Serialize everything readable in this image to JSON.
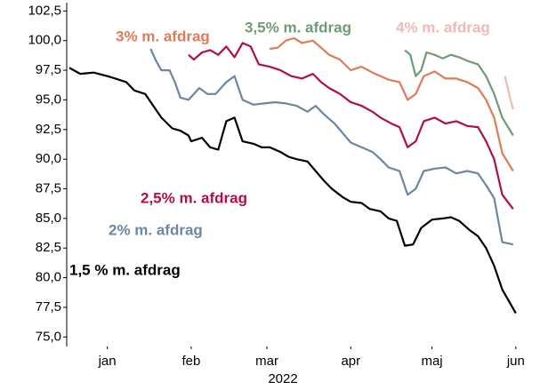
{
  "chart_data": {
    "type": "line",
    "x_label": "2022",
    "xlim": [
      -15,
      155
    ],
    "xticks": [
      {
        "value": 0,
        "label": "jan"
      },
      {
        "value": 31,
        "label": "feb"
      },
      {
        "value": 59,
        "label": "mar"
      },
      {
        "value": 90,
        "label": "apr"
      },
      {
        "value": 120,
        "label": "maj"
      },
      {
        "value": 151,
        "label": "jun"
      }
    ],
    "ylim": [
      74.2,
      103.2
    ],
    "yticks": [
      {
        "value": 75,
        "label": "75,0"
      },
      {
        "value": 77.5,
        "label": "77,5"
      },
      {
        "value": 80,
        "label": "80,0"
      },
      {
        "value": 82.5,
        "label": "82,5"
      },
      {
        "value": 85,
        "label": "85,0"
      },
      {
        "value": 87.5,
        "label": "87,5"
      },
      {
        "value": 90,
        "label": "90,0"
      },
      {
        "value": 92.5,
        "label": "92,5"
      },
      {
        "value": 95,
        "label": "95,0"
      },
      {
        "value": 97.5,
        "label": "97,5"
      },
      {
        "value": 100,
        "label": "100,0"
      },
      {
        "value": 102.5,
        "label": "102,5"
      }
    ],
    "series": [
      {
        "name": "1,5 % m. afdrag",
        "color": "#000000",
        "x": [
          -14,
          -10,
          -5,
          0,
          3,
          7,
          10,
          14,
          17,
          20,
          24,
          27,
          30,
          31,
          35,
          38,
          41,
          44,
          47,
          50,
          54,
          57,
          60,
          64,
          67,
          70,
          74,
          77,
          80,
          83,
          87,
          90,
          94,
          97,
          101,
          104,
          107,
          110,
          113,
          116,
          120,
          124,
          127,
          130,
          134,
          137,
          140,
          143,
          146,
          151
        ],
        "values": [
          97.7,
          97.2,
          97.3,
          97.0,
          96.8,
          96.5,
          95.8,
          95.5,
          94.5,
          93.5,
          92.6,
          92.4,
          92.0,
          91.5,
          91.8,
          91.0,
          90.8,
          93.2,
          93.5,
          91.5,
          91.3,
          91.0,
          91.0,
          90.6,
          90.2,
          90.0,
          89.8,
          89.0,
          88.2,
          87.5,
          86.8,
          86.4,
          86.3,
          85.8,
          85.6,
          85.0,
          84.8,
          82.7,
          82.8,
          84.2,
          84.9,
          85.0,
          85.1,
          84.8,
          84.0,
          83.5,
          82.5,
          81.0,
          79.0,
          77.0
        ]
      },
      {
        "name": "2% m. afdrag",
        "color": "#6b87a0",
        "x": [
          16,
          18,
          20,
          23,
          25,
          27,
          30,
          34,
          37,
          40,
          44,
          47,
          50,
          54,
          58,
          62,
          66,
          70,
          74,
          77,
          80,
          84,
          87,
          90,
          94,
          98,
          101,
          104,
          108,
          111,
          114,
          117,
          121,
          125,
          129,
          133,
          137,
          140,
          143,
          146,
          150
        ],
        "values": [
          99.3,
          98.3,
          97.5,
          97.5,
          96.5,
          95.2,
          95.0,
          96.0,
          95.5,
          95.5,
          96.5,
          97.0,
          95.0,
          94.6,
          94.7,
          94.8,
          94.7,
          94.5,
          94.0,
          94.5,
          93.8,
          93.0,
          92.2,
          91.4,
          91.0,
          90.6,
          90.0,
          89.3,
          89.0,
          87.0,
          87.5,
          89.0,
          89.2,
          89.3,
          88.8,
          89.0,
          88.8,
          87.8,
          86.7,
          83.0,
          82.8
        ]
      },
      {
        "name": "2,5% m. afdrag",
        "color": "#b0103f",
        "x": [
          30,
          32,
          35,
          38,
          41,
          44,
          47,
          50,
          53,
          56,
          60,
          64,
          68,
          72,
          76,
          79,
          82,
          86,
          90,
          94,
          98,
          101,
          105,
          108,
          111,
          114,
          117,
          121,
          125,
          129,
          133,
          137,
          140,
          143,
          146,
          150
        ],
        "values": [
          98.8,
          98.4,
          99.0,
          99.2,
          98.8,
          99.5,
          98.6,
          99.8,
          99.5,
          98.0,
          97.8,
          97.5,
          97.0,
          96.8,
          97.2,
          96.5,
          96.0,
          95.5,
          94.8,
          94.5,
          94.0,
          93.5,
          93.0,
          92.7,
          91.0,
          91.5,
          93.2,
          93.5,
          93.0,
          93.2,
          92.8,
          92.7,
          91.5,
          90.0,
          87.0,
          85.8
        ]
      },
      {
        "name": "3% m. afdrag",
        "color": "#e07b55",
        "x": [
          60,
          63,
          66,
          69,
          72,
          76,
          79,
          82,
          86,
          90,
          94,
          98,
          101,
          104,
          108,
          111,
          114,
          117,
          121,
          125,
          129,
          133,
          137,
          140,
          143,
          146,
          150
        ],
        "values": [
          99.3,
          99.4,
          100.0,
          100.2,
          99.8,
          100.0,
          99.4,
          98.8,
          98.4,
          97.5,
          97.8,
          97.3,
          97.0,
          96.7,
          96.5,
          95.0,
          95.5,
          97.0,
          97.4,
          96.8,
          96.8,
          96.5,
          96.0,
          95.0,
          93.5,
          90.5,
          89.0
        ]
      },
      {
        "name": "3,5% m. afdrag",
        "color": "#6f9a78",
        "x": [
          110,
          112,
          114,
          116,
          118,
          121,
          124,
          127,
          130,
          133,
          137,
          140,
          143,
          146,
          150
        ],
        "values": [
          99.2,
          98.8,
          97.0,
          97.5,
          99.0,
          98.8,
          98.5,
          98.8,
          98.6,
          98.3,
          98.0,
          97.0,
          95.5,
          93.5,
          92.0
        ]
      },
      {
        "name": "4% m. afdrag",
        "color": "#f0b8b8",
        "x": [
          147,
          148,
          149,
          150
        ],
        "values": [
          97.0,
          96.0,
          95.0,
          94.2
        ]
      }
    ]
  }
}
